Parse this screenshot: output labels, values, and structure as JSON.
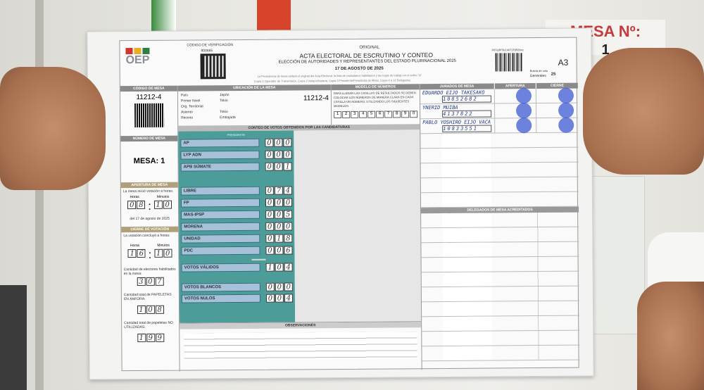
{
  "sign": {
    "label": "MESA Nº:",
    "number": "1"
  },
  "acta": {
    "logo": "OEP",
    "verification_label": "CÓDIGO DE VERIFICACIÓN",
    "verification_code": "900665",
    "copy": "ORIGINAL",
    "title": "ACTA ELECTORAL DE ESCRUTINIO Y CONTEO",
    "subtitle": "ELECCIÓN DE AUTORIDADES Y REPRESENTANTES DEL ESTADO PLURINACIONAL 2025",
    "date": "17 DE AGOSTO DE 2025",
    "note1": "La Presidencia de mesa sellará el original del Acta Electoral, la lista de ciudadanos habilitados y las hojas de trabajo en el sobre \"A\"",
    "note2": "Copia 1 Operador de Transmisión, Copia 2 Notario/Notaria, Copia 3 Presidente/Presidenta de Mesa, Copia 4 a 12 Delegados.",
    "barcode_code": "P07e907le14071f1f62bcc",
    "ballot_label": "Boleta de voto",
    "generales_label": "Generales",
    "generales_value": "25",
    "form_code": "A3",
    "codigo_mesa_label": "CÓDIGO DE MESA",
    "codigo_mesa": "11212-4",
    "numero_mesa_label": "NÚMERO DE MESA",
    "mesa": "MESA: 1",
    "ubicacion_label": "UBICACIÓN DE LA MESA",
    "ubicacion": [
      {
        "k": "País",
        "v": "Japón"
      },
      {
        "k": "Primer Nivel",
        "v": "Tokio"
      },
      {
        "k": "Org. Territorial",
        "v": ""
      },
      {
        "k": "Asiento",
        "v": "Tokio"
      },
      {
        "k": "Recinto",
        "v": "Embajada"
      }
    ],
    "modelo_label": "MODELO DE NÚMEROS",
    "modelo_text": "PARA LLENAR LAS CASILLAS DE RESULTADOS SE DEBEN COLOCAR LOS NÚMEROS DE MANERA CLARA EN CADA CASILLA UN NÚMERO, UTILIZANDO LOS SIGUIENTES MODELOS.",
    "modelo_digits": [
      "1",
      "2",
      "3",
      "4",
      "5",
      "6",
      "7",
      "8",
      "9",
      "0"
    ],
    "conteo_label": "CONTEO DE VOTOS OBTENIDOS POR LAS CANDIDATURAS",
    "presidente_label": "PRESIDENTE",
    "parties": [
      {
        "name": "AP",
        "votes": [
          "0",
          "0",
          "0"
        ]
      },
      {
        "name": "LYP ADN",
        "votes": [
          "0",
          "0",
          "0"
        ]
      },
      {
        "name": "APB SÚMATE",
        "votes": [
          "0",
          "0",
          "1"
        ]
      },
      {
        "name": "LIBRE",
        "votes": [
          "0",
          "7",
          "4"
        ]
      },
      {
        "name": "FP",
        "votes": [
          "0",
          "0",
          "0"
        ]
      },
      {
        "name": "MAS-IPSP",
        "votes": [
          "0",
          "0",
          "5"
        ]
      },
      {
        "name": "MORENA",
        "votes": [
          "0",
          "0",
          "0"
        ]
      },
      {
        "name": "UNIDAD",
        "votes": [
          "0",
          "1",
          "8"
        ]
      },
      {
        "name": "PDC",
        "votes": [
          "0",
          "0",
          "6"
        ]
      }
    ],
    "validos": {
      "name": "VOTOS VÁLIDOS",
      "votes": [
        "1",
        "0",
        "4"
      ]
    },
    "blancos": {
      "name": "VOTOS BLANCOS",
      "votes": [
        "0",
        "0",
        "0"
      ]
    },
    "nulos": {
      "name": "VOTOS NULOS",
      "votes": [
        "0",
        "0",
        "4"
      ]
    },
    "observaciones_label": "OBSERVACIONES",
    "apertura": {
      "label": "APERTURA DE MESA",
      "text": "La mesa inició votación a horas:",
      "horas_label": "Horas",
      "minutos_label": "Minutos",
      "horas": [
        "0",
        "8"
      ],
      "minutos": [
        "1",
        "0"
      ],
      "date": "del 17 de agosto de 2025"
    },
    "cierre": {
      "label": "CIERRE DE VOTACIÓN",
      "text": "La votación concluyó a horas:",
      "horas_label": "Horas",
      "minutos_label": "Minutos",
      "horas": [
        "1",
        "6"
      ],
      "minutos": [
        "1",
        "0"
      ]
    },
    "habilitados": {
      "label": "Cantidad de electores habilitados en la mesa:",
      "digits": [
        "3",
        "0",
        "7"
      ]
    },
    "anfora": {
      "label": "Cantidad total de PAPELETAS EN ÁNFORA:",
      "digits": [
        "1",
        "0",
        "8"
      ]
    },
    "no_utilizadas": {
      "label": "Cantidad total de papeletas NO UTILIZADAS:",
      "digits": [
        "1",
        "9",
        "9"
      ]
    },
    "jurados_label": "JURADOS DE MESA",
    "apertura_col": "APERTURA",
    "cierre_col": "CIERRE",
    "jurados": [
      {
        "name": "EDUARDO EIJO TAKESAKO",
        "doc": "10852682"
      },
      {
        "name": "YNERID MUIBA",
        "doc": "4137822"
      },
      {
        "name": "PABLO YOSHIRO EIJO VACA",
        "doc": "10833551"
      }
    ],
    "delegados_label": "DELEGADOS DE MESA ACREDITADOS"
  }
}
